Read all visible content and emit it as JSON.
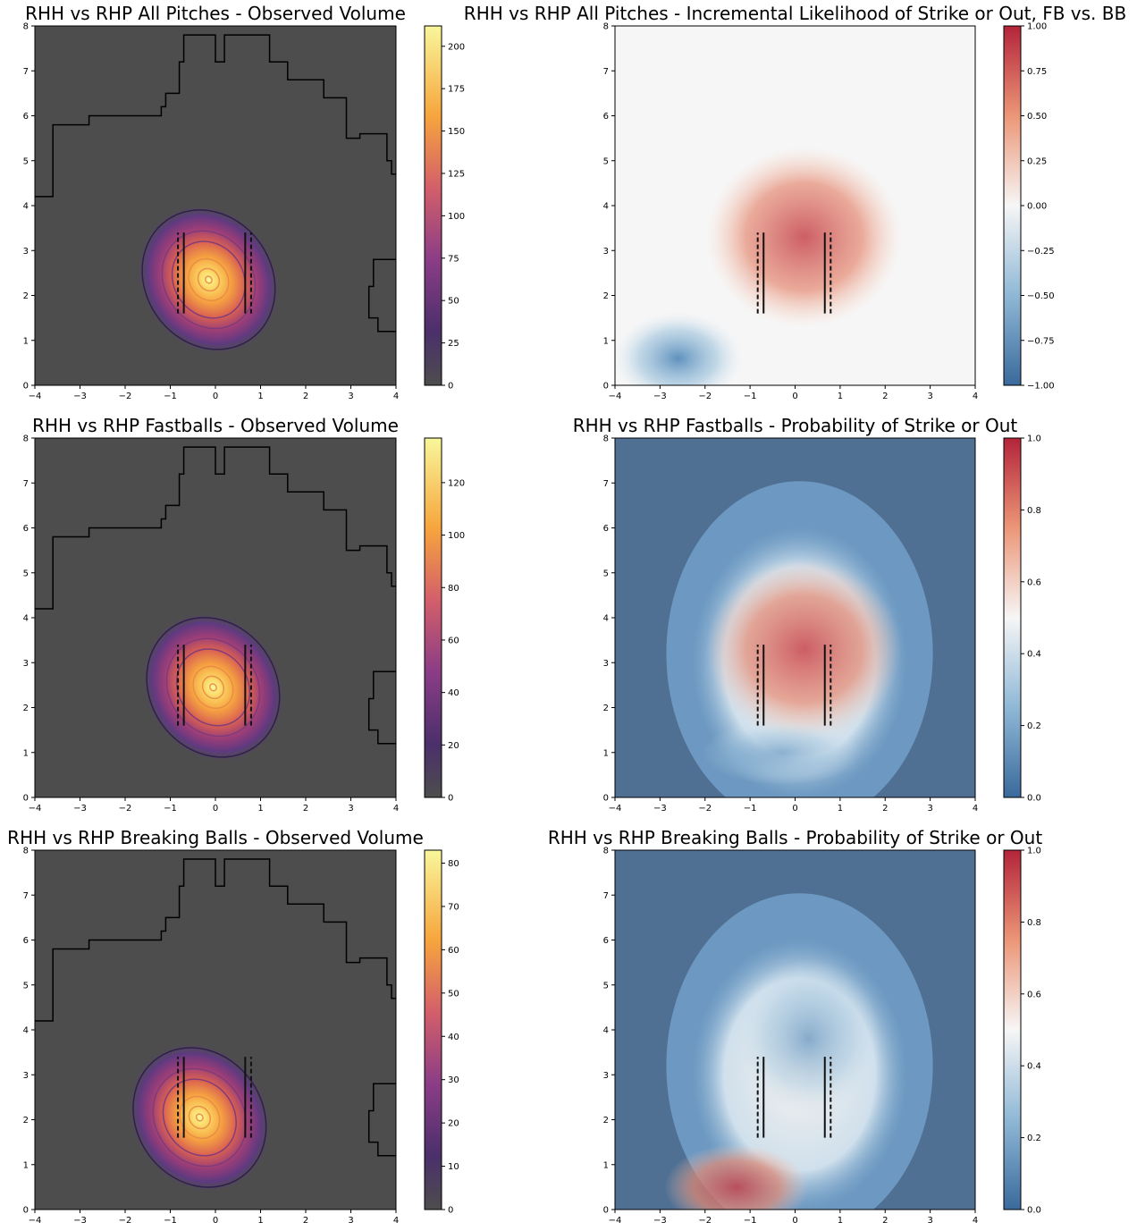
{
  "chart_data": [
    {
      "type": "heatmap",
      "title": "RHH vs RHP  All Pitches - Observed Volume",
      "xlim": [
        -4,
        4
      ],
      "ylim": [
        0,
        8
      ],
      "xticks": [
        "−4",
        "−3",
        "−2",
        "−1",
        "0",
        "1",
        "2",
        "3",
        "4"
      ],
      "yticks": [
        "0",
        "1",
        "2",
        "3",
        "4",
        "5",
        "6",
        "7",
        "8"
      ],
      "colormap": "inferno-like",
      "colorbar": {
        "min": 0,
        "max": 212,
        "ticks": [
          "0",
          "25",
          "50",
          "75",
          "100",
          "125",
          "150",
          "175",
          "200"
        ],
        "tick_values": [
          0,
          25,
          50,
          75,
          100,
          125,
          150,
          175,
          200
        ]
      },
      "peak": {
        "x": -0.15,
        "y": 2.35,
        "value": 212
      },
      "strike_zone_lines_x": [
        -0.83,
        -0.7,
        0.66,
        0.79
      ],
      "strike_zone_y": [
        1.6,
        3.4
      ]
    },
    {
      "type": "heatmap",
      "title": "RHH vs RHP  All Pitches - Incremental Likelihood of Strike or Out, FB vs. BB",
      "xlim": [
        -4,
        4
      ],
      "ylim": [
        0,
        8
      ],
      "xticks": [
        "−4",
        "−3",
        "−2",
        "−1",
        "0",
        "1",
        "2",
        "3",
        "4"
      ],
      "yticks": [
        "0",
        "1",
        "2",
        "3",
        "4",
        "5",
        "6",
        "7",
        "8"
      ],
      "colormap": "RdBu_r",
      "colorbar": {
        "min": -1,
        "max": 1,
        "ticks": [
          "−1.00",
          "−0.75",
          "−0.50",
          "−0.25",
          "0.00",
          "0.25",
          "0.50",
          "0.75",
          "1.00"
        ],
        "tick_values": [
          -1,
          -0.75,
          -0.5,
          -0.25,
          0,
          0.25,
          0.5,
          0.75,
          1
        ]
      },
      "strike_zone_lines_x": [
        -0.83,
        -0.7,
        0.66,
        0.79
      ],
      "strike_zone_y": [
        1.6,
        3.4
      ]
    },
    {
      "type": "heatmap",
      "title": "RHH vs RHP Fastballs - Observed Volume",
      "xlim": [
        -4,
        4
      ],
      "ylim": [
        0,
        8
      ],
      "xticks": [
        "−4",
        "−3",
        "−2",
        "−1",
        "0",
        "1",
        "2",
        "3",
        "4"
      ],
      "yticks": [
        "0",
        "1",
        "2",
        "3",
        "4",
        "5",
        "6",
        "7",
        "8"
      ],
      "colormap": "inferno-like",
      "colorbar": {
        "min": 0,
        "max": 137,
        "ticks": [
          "0",
          "20",
          "40",
          "60",
          "80",
          "100",
          "120"
        ],
        "tick_values": [
          0,
          20,
          40,
          60,
          80,
          100,
          120
        ]
      },
      "peak": {
        "x": -0.05,
        "y": 2.45,
        "value": 137
      },
      "strike_zone_lines_x": [
        -0.83,
        -0.7,
        0.66,
        0.79
      ],
      "strike_zone_y": [
        1.6,
        3.4
      ]
    },
    {
      "type": "heatmap",
      "title": "RHH vs RHP Fastballs - Probability of Strike or Out",
      "xlim": [
        -4,
        4
      ],
      "ylim": [
        0,
        8
      ],
      "xticks": [
        "−4",
        "−3",
        "−2",
        "−1",
        "0",
        "1",
        "2",
        "3",
        "4"
      ],
      "yticks": [
        "0",
        "1",
        "2",
        "3",
        "4",
        "5",
        "6",
        "7",
        "8"
      ],
      "colormap": "RdBu_r",
      "colorbar": {
        "min": 0,
        "max": 1,
        "ticks": [
          "0.0",
          "0.2",
          "0.4",
          "0.6",
          "0.8",
          "1.0"
        ],
        "tick_values": [
          0,
          0.2,
          0.4,
          0.6,
          0.8,
          1.0
        ]
      },
      "strike_zone_lines_x": [
        -0.83,
        -0.7,
        0.66,
        0.79
      ],
      "strike_zone_y": [
        1.6,
        3.4
      ]
    },
    {
      "type": "heatmap",
      "title": "RHH vs RHP Breaking Balls - Observed Volume",
      "xlim": [
        -4,
        4
      ],
      "ylim": [
        0,
        8
      ],
      "xticks": [
        "−4",
        "−3",
        "−2",
        "−1",
        "0",
        "1",
        "2",
        "3",
        "4"
      ],
      "yticks": [
        "0",
        "1",
        "2",
        "3",
        "4",
        "5",
        "6",
        "7",
        "8"
      ],
      "colormap": "inferno-like",
      "colorbar": {
        "min": 0,
        "max": 83,
        "ticks": [
          "0",
          "10",
          "20",
          "30",
          "40",
          "50",
          "60",
          "70",
          "80"
        ],
        "tick_values": [
          0,
          10,
          20,
          30,
          40,
          50,
          60,
          70,
          80
        ]
      },
      "peak": {
        "x": -0.35,
        "y": 2.05,
        "value": 83
      },
      "strike_zone_lines_x": [
        -0.83,
        -0.7,
        0.66,
        0.79
      ],
      "strike_zone_y": [
        1.6,
        3.4
      ]
    },
    {
      "type": "heatmap",
      "title": "RHH vs RHP Breaking Balls - Probability of Strike or Out",
      "xlim": [
        -4,
        4
      ],
      "ylim": [
        0,
        8
      ],
      "xticks": [
        "−4",
        "−3",
        "−2",
        "−1",
        "0",
        "1",
        "2",
        "3",
        "4"
      ],
      "yticks": [
        "0",
        "1",
        "2",
        "3",
        "4",
        "5",
        "6",
        "7",
        "8"
      ],
      "colormap": "RdBu_r",
      "colorbar": {
        "min": 0,
        "max": 1,
        "ticks": [
          "0.0",
          "0.2",
          "0.4",
          "0.6",
          "0.8",
          "1.0"
        ],
        "tick_values": [
          0,
          0.2,
          0.4,
          0.6,
          0.8,
          1.0
        ]
      },
      "strike_zone_lines_x": [
        -0.83,
        -0.7,
        0.66,
        0.79
      ],
      "strike_zone_y": [
        1.6,
        3.4
      ]
    }
  ]
}
